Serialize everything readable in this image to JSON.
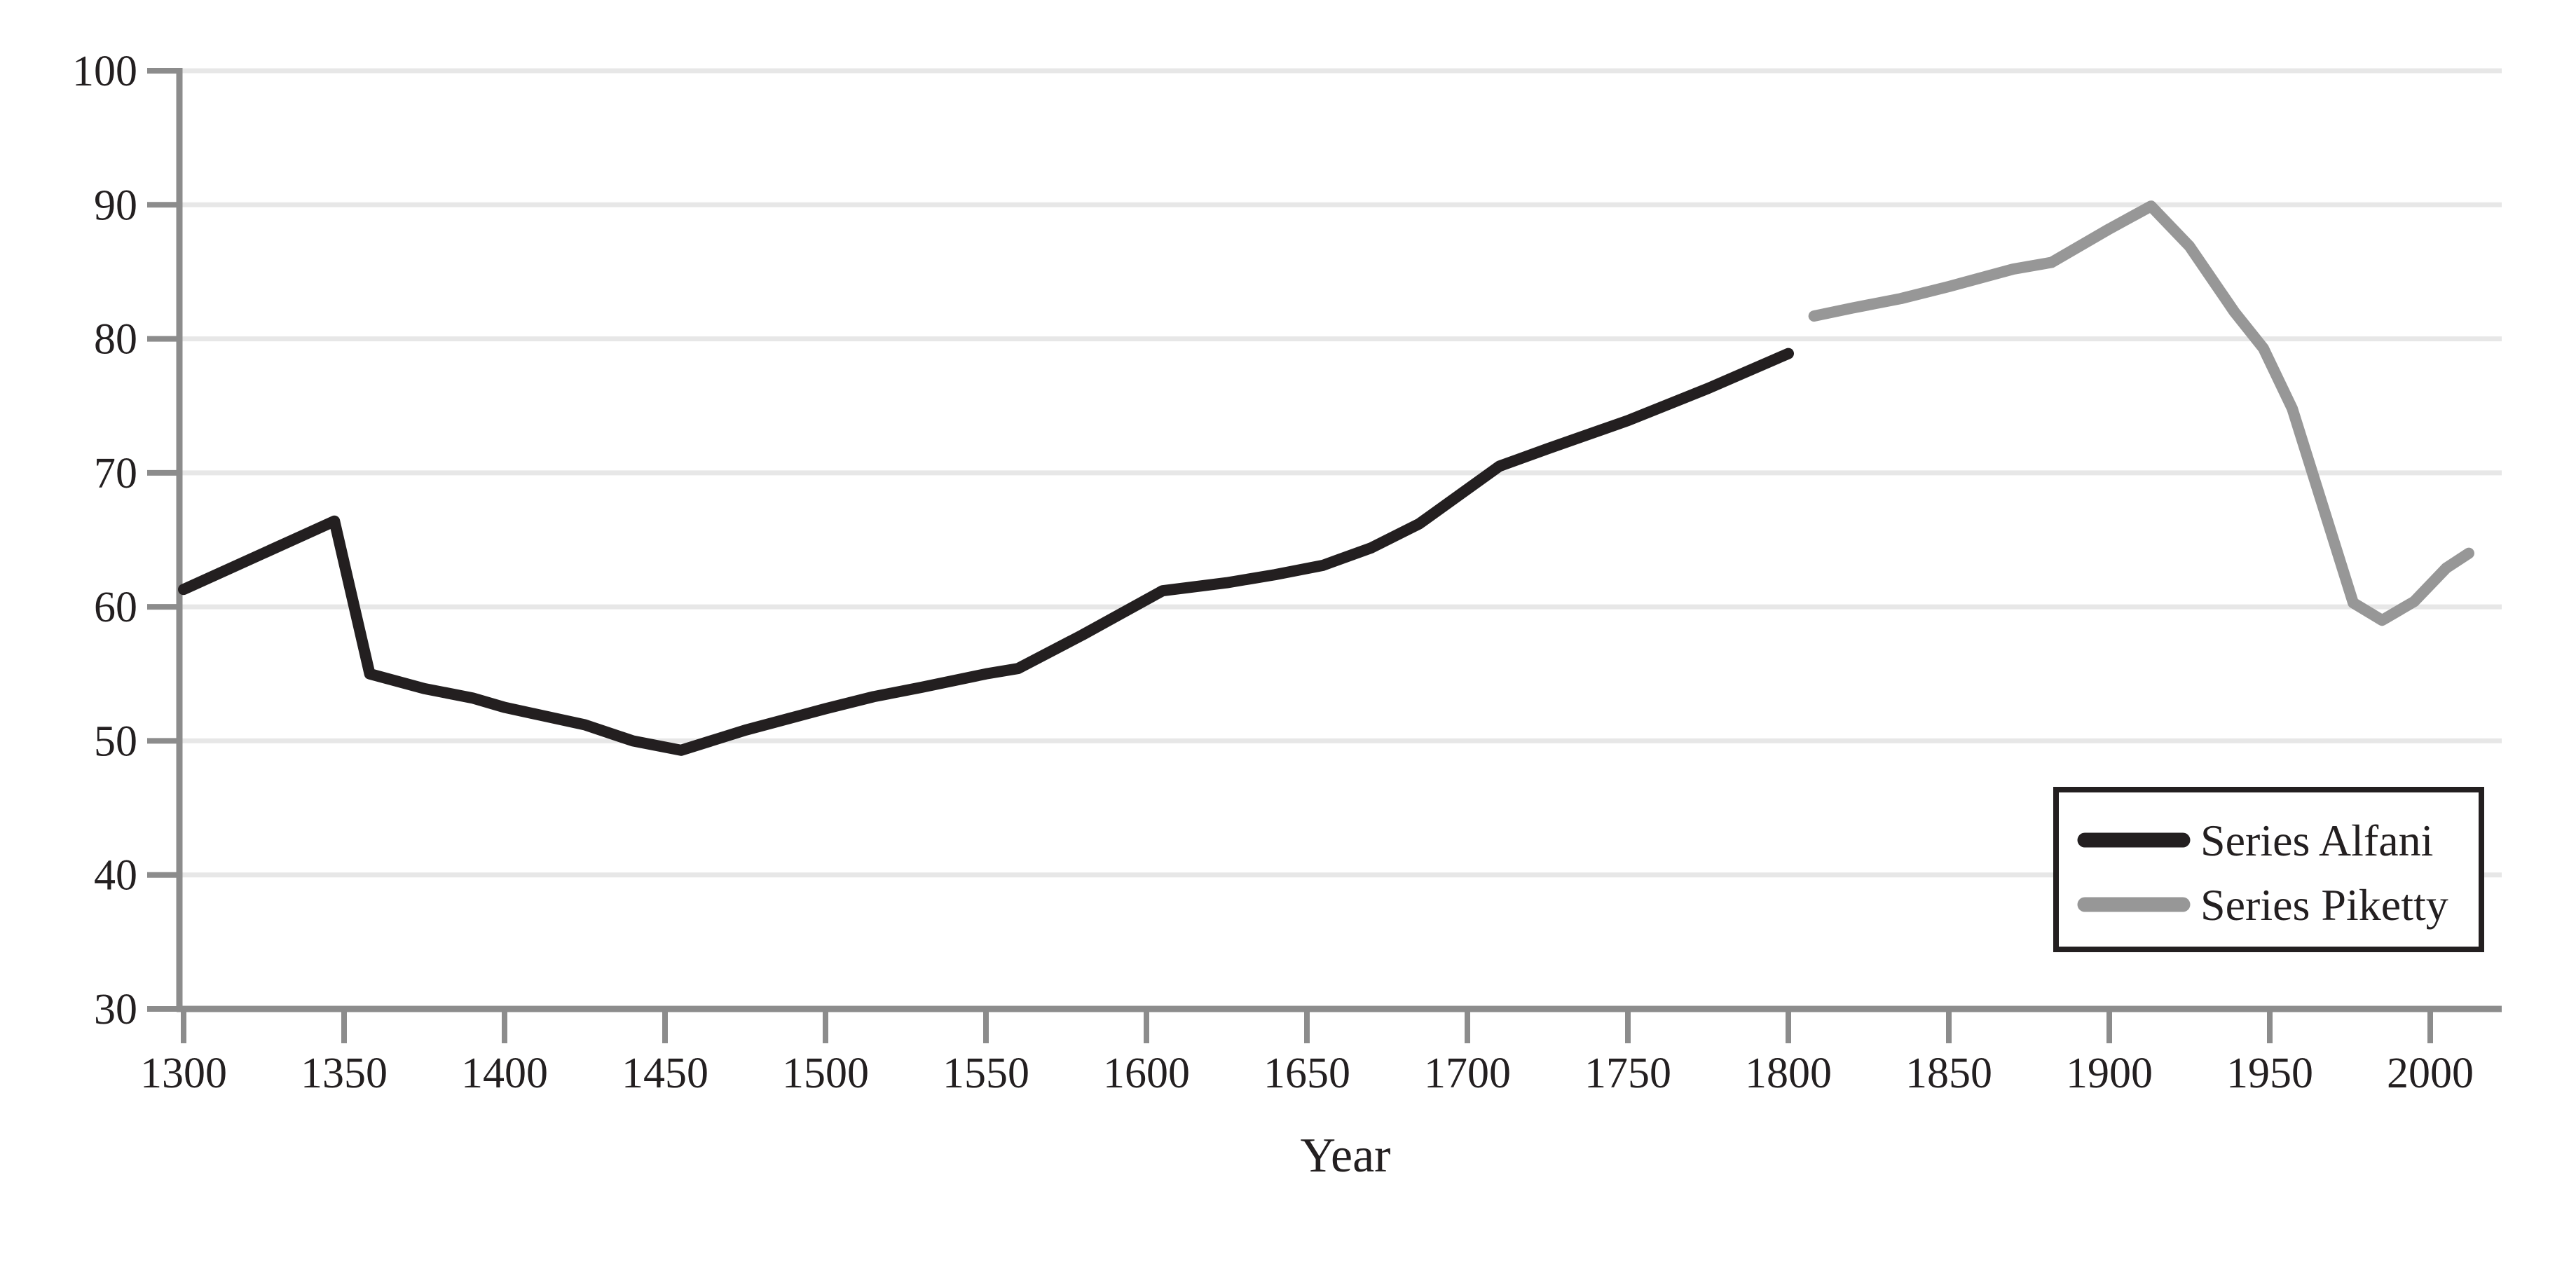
{
  "chart_data": {
    "type": "line",
    "title": "",
    "xlabel": "Year",
    "ylabel": "",
    "xlim": [
      1300,
      2022
    ],
    "ylim": [
      30,
      100
    ],
    "x_ticks": [
      1300,
      1350,
      1400,
      1450,
      1500,
      1550,
      1600,
      1650,
      1700,
      1750,
      1800,
      1850,
      1900,
      1950,
      2000
    ],
    "y_ticks": [
      30,
      40,
      50,
      60,
      70,
      80,
      90,
      100
    ],
    "grid": "horizontal",
    "legend_position": "lower-right",
    "colors": {
      "alfani": "#231f20",
      "piketty": "#979797",
      "axis": "#8c8c8c",
      "gridline": "#e7e7e7"
    },
    "series": [
      {
        "name": "Series Alfani",
        "color": "#231f20",
        "x": [
          1300,
          1347,
          1358,
          1375,
          1390,
          1400,
          1425,
          1440,
          1455,
          1475,
          1500,
          1515,
          1530,
          1550,
          1560,
          1580,
          1605,
          1625,
          1640,
          1655,
          1670,
          1685,
          1710,
          1725,
          1750,
          1775,
          1800
        ],
        "y": [
          61.3,
          66.4,
          55.0,
          53.9,
          53.2,
          52.5,
          51.2,
          50.0,
          49.3,
          50.8,
          52.4,
          53.3,
          54.0,
          55.0,
          55.4,
          57.9,
          61.2,
          61.8,
          62.4,
          63.1,
          64.4,
          66.2,
          70.5,
          71.8,
          73.9,
          76.3,
          78.9
        ]
      },
      {
        "name": "Series Piketty",
        "color": "#979797",
        "x": [
          1808,
          1820,
          1835,
          1850,
          1870,
          1882,
          1900,
          1913,
          1925,
          1939,
          1948,
          1957,
          1976,
          1985,
          1995,
          2005,
          2012
        ],
        "y": [
          81.7,
          82.3,
          83.0,
          83.9,
          85.2,
          85.7,
          88.2,
          89.9,
          86.9,
          82.0,
          79.3,
          74.8,
          60.3,
          59.0,
          60.4,
          62.9,
          64.0
        ]
      }
    ]
  },
  "legend": {
    "items": [
      {
        "label": "Series Alfani"
      },
      {
        "label": "Series Piketty"
      }
    ]
  }
}
